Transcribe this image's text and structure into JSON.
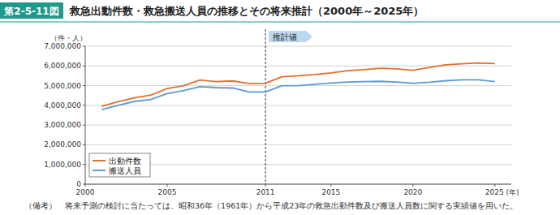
{
  "chart_data": {
    "type": "line",
    "figure_label": "第2-5-11図",
    "title": "救急出動件数・救急搬送人員の推移とその将来推計（2000年～2025年）",
    "y_label": "（件・人）",
    "annotations": [
      {
        "text": "推計値",
        "x": 2011
      }
    ],
    "note": "（備考）　将来予測の検討に当たっては、昭和36年（1961年）から平成23年の救急出動件数及び搬送人員数に関する実績値を用いた。",
    "x": [
      2001,
      2002,
      2003,
      2004,
      2005,
      2006,
      2007,
      2008,
      2009,
      2010,
      2011,
      2012,
      2013,
      2014,
      2015,
      2016,
      2017,
      2018,
      2019,
      2020,
      2021,
      2022,
      2023,
      2024,
      2025
    ],
    "series": [
      {
        "name": "出動件数",
        "color": "#e07030",
        "values": [
          3950000,
          4180000,
          4380000,
          4520000,
          4850000,
          5000000,
          5290000,
          5200000,
          5240000,
          5100000,
          5120000,
          5450000,
          5500000,
          5560000,
          5650000,
          5760000,
          5810000,
          5880000,
          5850000,
          5780000,
          5920000,
          6060000,
          6110000,
          6150000,
          6120000
        ]
      },
      {
        "name": "搬送人員",
        "color": "#5b9bd5",
        "values": [
          3780000,
          4000000,
          4200000,
          4300000,
          4600000,
          4750000,
          4950000,
          4900000,
          4880000,
          4680000,
          4680000,
          5000000,
          5000000,
          5070000,
          5130000,
          5180000,
          5200000,
          5220000,
          5180000,
          5120000,
          5170000,
          5250000,
          5300000,
          5300000,
          5200000
        ]
      }
    ],
    "xlim": [
      2000,
      2026
    ],
    "xticks": [
      2000,
      2005,
      2011,
      2015,
      2020,
      {
        "value": 2025,
        "label": "2025 (年)"
      }
    ],
    "ylim": [
      0,
      7000000
    ],
    "yticks": [
      0,
      {
        "value": 1000000,
        "label": "1,000,000"
      },
      {
        "value": 2000000,
        "label": "2,000,000"
      },
      {
        "value": 3000000,
        "label": "3,000,000"
      },
      {
        "value": 4000000,
        "label": "4,000,000"
      },
      {
        "value": 5000000,
        "label": "5,000,000"
      },
      {
        "value": 6000000,
        "label": "6,000,000"
      },
      {
        "value": 7000000,
        "label": "7,000,000"
      }
    ],
    "grid": true,
    "legend": "lower left"
  }
}
